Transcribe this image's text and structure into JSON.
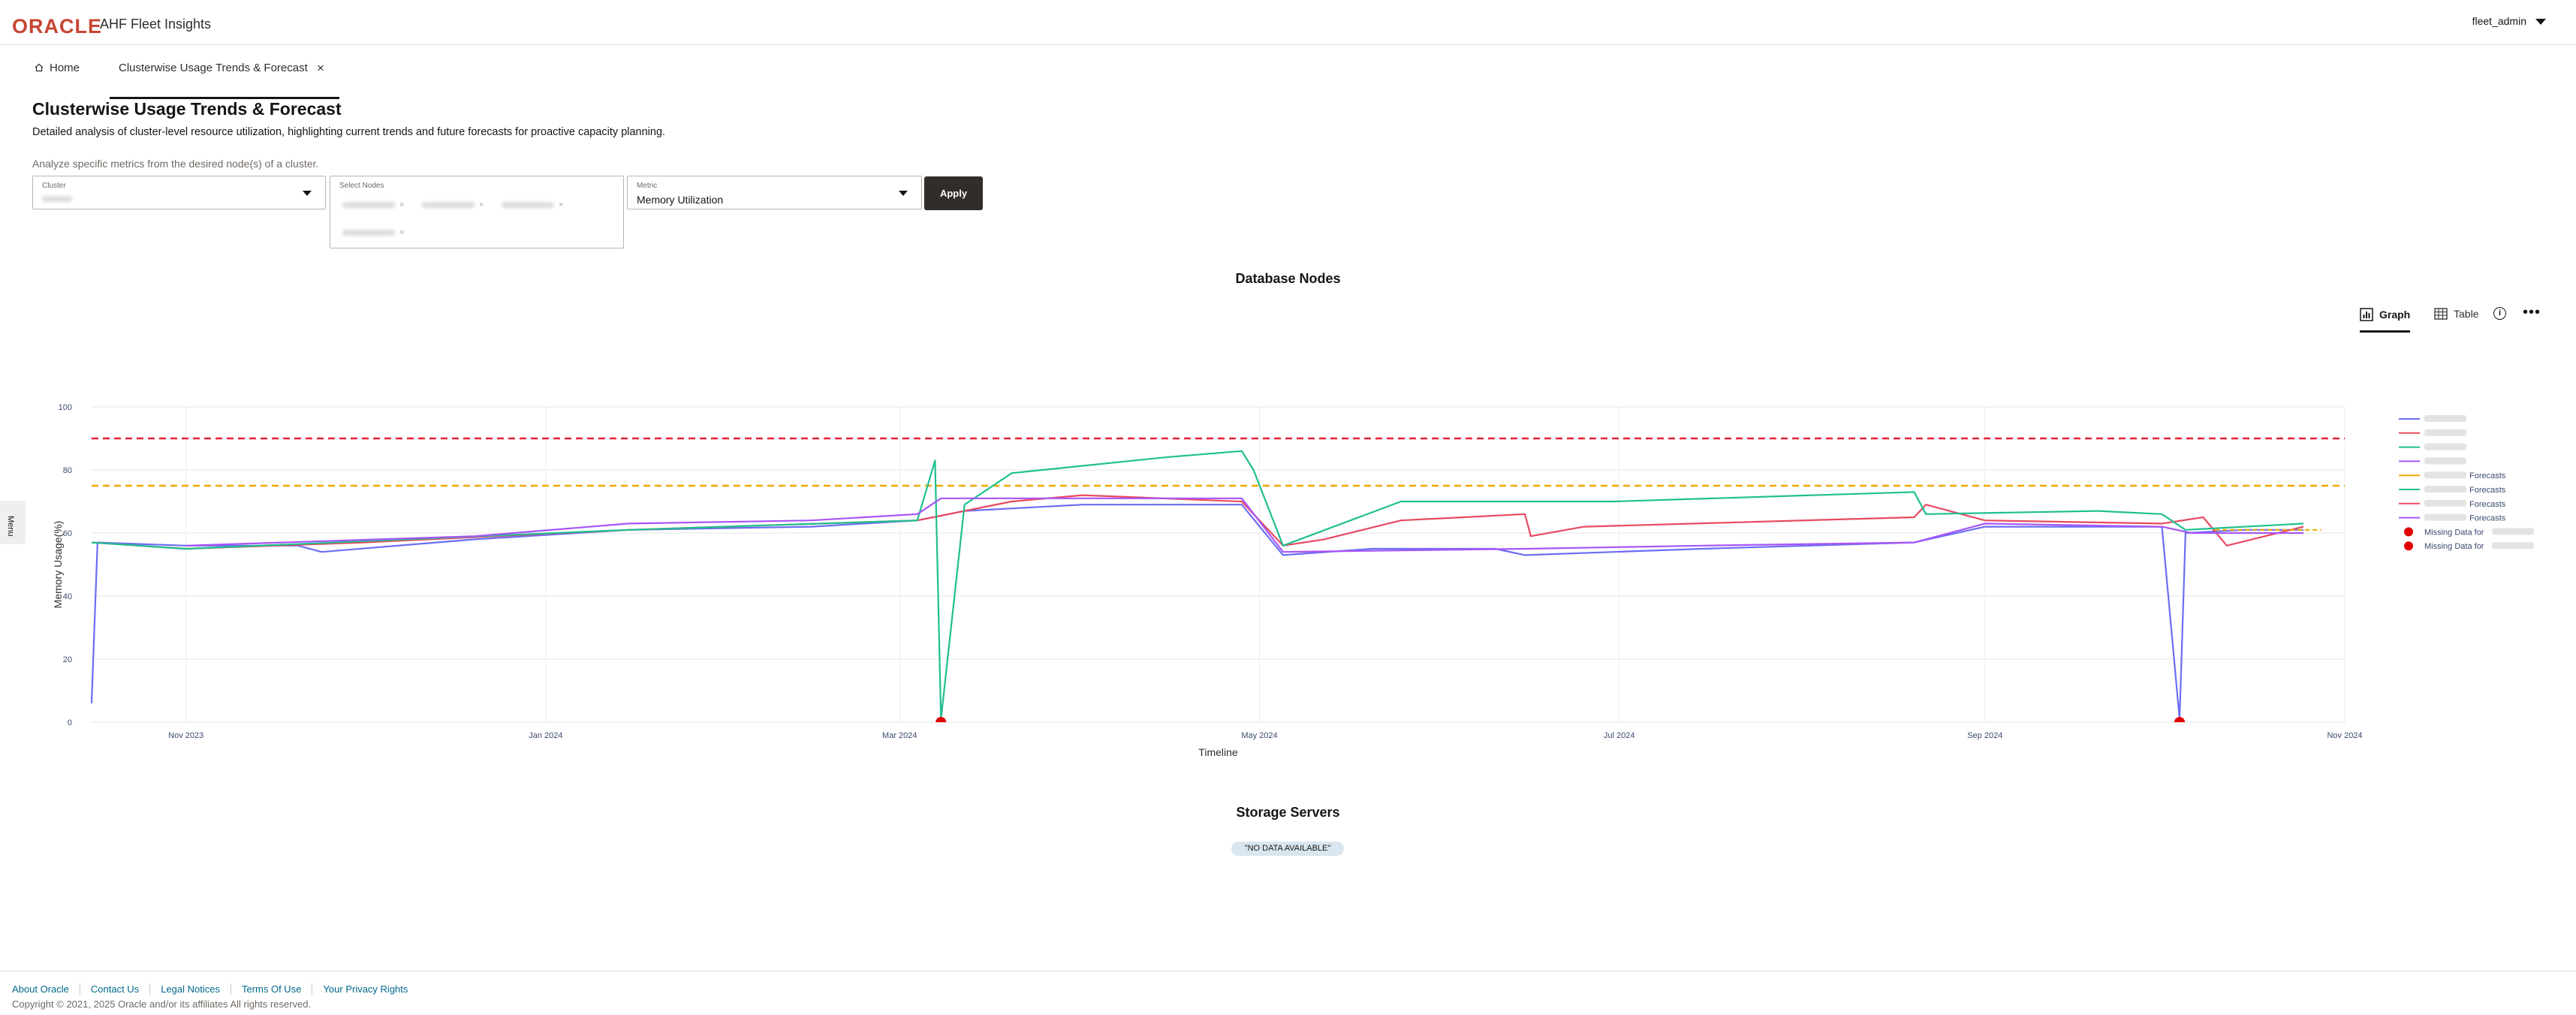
{
  "header": {
    "logo": "ORACLE",
    "app_title": "AHF Fleet Insights",
    "user": "fleet_admin"
  },
  "tabs": {
    "home": "Home",
    "active": "Clusterwise Usage Trends & Forecast",
    "close": "×"
  },
  "page": {
    "title": "Clusterwise Usage Trends & Forecast",
    "description": "Detailed analysis of cluster-level resource utilization, highlighting current trends and future forecasts for proactive capacity planning.",
    "hint": "Analyze specific metrics from the desired node(s) of a cluster."
  },
  "filters": {
    "cluster_label": "Cluster",
    "nodes_label": "Select Nodes",
    "metric_label": "Metric",
    "metric_value": "Memory Utilization",
    "apply": "Apply"
  },
  "side_menu": {
    "label": "Menu"
  },
  "sections": {
    "database_nodes": "Database Nodes",
    "storage_servers": "Storage Servers"
  },
  "view": {
    "graph": "Graph",
    "table": "Table"
  },
  "storage": {
    "no_data": "\"NO DATA AVAILABLE\""
  },
  "chart_data": {
    "type": "line",
    "xlabel": "Timeline",
    "ylabel": "Memory Usage(%)",
    "ylim": [
      0,
      100
    ],
    "xlim": [
      "2023-10-16",
      "2024-11-01"
    ],
    "y_ticks": [
      0,
      20,
      40,
      60,
      80,
      100
    ],
    "x_ticks": [
      {
        "date": "2023-11-01",
        "label": "Nov 2023"
      },
      {
        "date": "2024-01-01",
        "label": "Jan 2024"
      },
      {
        "date": "2024-03-01",
        "label": "Mar 2024"
      },
      {
        "date": "2024-05-01",
        "label": "May 2024"
      },
      {
        "date": "2024-07-01",
        "label": "Jul 2024"
      },
      {
        "date": "2024-09-01",
        "label": "Sep 2024"
      },
      {
        "date": "2024-11-01",
        "label": "Nov 2024"
      }
    ],
    "thresholds": [
      {
        "value": 90,
        "color": "#e8203a"
      },
      {
        "value": 75,
        "color": "#f0a800"
      }
    ],
    "series": [
      {
        "color": "#6b6ef5",
        "points": [
          [
            "2023-10-16",
            6
          ],
          [
            "2023-10-17",
            57
          ],
          [
            "2023-11-01",
            56
          ],
          [
            "2023-11-20",
            56
          ],
          [
            "2023-11-24",
            54
          ],
          [
            "2023-12-20",
            58
          ],
          [
            "2024-01-15",
            61
          ],
          [
            "2024-02-15",
            62
          ],
          [
            "2024-03-04",
            64
          ],
          [
            "2024-03-12",
            67
          ],
          [
            "2024-04-01",
            69
          ],
          [
            "2024-04-28",
            69
          ],
          [
            "2024-05-05",
            53
          ],
          [
            "2024-05-20",
            55
          ],
          [
            "2024-06-10",
            55
          ],
          [
            "2024-06-15",
            53
          ],
          [
            "2024-07-15",
            55
          ],
          [
            "2024-08-20",
            57
          ],
          [
            "2024-09-01",
            62
          ],
          [
            "2024-10-01",
            62
          ],
          [
            "2024-10-04",
            1
          ],
          [
            "2024-10-05",
            60
          ],
          [
            "2024-10-15",
            61
          ],
          [
            "2024-10-25",
            61
          ]
        ]
      },
      {
        "color": "#e84a5f",
        "points": [
          [
            "2023-10-16",
            57
          ],
          [
            "2023-11-01",
            55
          ],
          [
            "2023-12-01",
            57
          ],
          [
            "2024-01-15",
            61
          ],
          [
            "2024-03-04",
            64
          ],
          [
            "2024-03-20",
            70
          ],
          [
            "2024-04-01",
            72
          ],
          [
            "2024-04-28",
            70
          ],
          [
            "2024-05-05",
            56
          ],
          [
            "2024-05-12",
            58
          ],
          [
            "2024-05-25",
            64
          ],
          [
            "2024-06-15",
            66
          ],
          [
            "2024-06-16",
            59
          ],
          [
            "2024-06-25",
            62
          ],
          [
            "2024-08-20",
            65
          ],
          [
            "2024-08-22",
            69
          ],
          [
            "2024-09-01",
            64
          ],
          [
            "2024-10-01",
            63
          ],
          [
            "2024-10-08",
            65
          ],
          [
            "2024-10-12",
            56
          ],
          [
            "2024-10-25",
            62
          ]
        ]
      },
      {
        "color": "#1fbf8f",
        "points": [
          [
            "2023-10-16",
            57
          ],
          [
            "2023-11-01",
            55
          ],
          [
            "2024-01-15",
            61
          ],
          [
            "2024-03-04",
            64
          ],
          [
            "2024-03-07",
            83
          ],
          [
            "2024-03-08",
            1
          ],
          [
            "2024-03-12",
            69
          ],
          [
            "2024-03-20",
            79
          ],
          [
            "2024-04-15",
            84
          ],
          [
            "2024-04-28",
            86
          ],
          [
            "2024-04-30",
            80
          ],
          [
            "2024-05-05",
            56
          ],
          [
            "2024-05-25",
            70
          ],
          [
            "2024-06-30",
            70
          ],
          [
            "2024-08-20",
            73
          ],
          [
            "2024-08-22",
            66
          ],
          [
            "2024-09-20",
            67
          ],
          [
            "2024-10-01",
            66
          ],
          [
            "2024-10-05",
            61
          ],
          [
            "2024-10-25",
            63
          ]
        ]
      },
      {
        "color": "#a855f7",
        "points": [
          [
            "2023-11-01",
            56
          ],
          [
            "2023-12-20",
            59
          ],
          [
            "2024-01-15",
            63
          ],
          [
            "2024-02-15",
            64
          ],
          [
            "2024-03-04",
            66
          ],
          [
            "2024-03-08",
            71
          ],
          [
            "2024-03-20",
            71
          ],
          [
            "2024-04-28",
            71
          ],
          [
            "2024-05-05",
            54
          ],
          [
            "2024-06-15",
            55
          ],
          [
            "2024-07-15",
            56
          ],
          [
            "2024-08-20",
            57
          ],
          [
            "2024-09-01",
            63
          ],
          [
            "2024-10-01",
            62
          ],
          [
            "2024-10-06",
            60
          ],
          [
            "2024-10-25",
            60
          ]
        ]
      },
      {
        "color": "#f0a800",
        "dash": true,
        "points": [
          [
            "2024-10-10",
            61
          ],
          [
            "2024-10-28",
            61
          ]
        ]
      }
    ],
    "missing_markers": [
      "2024-03-08",
      "2024-10-04"
    ],
    "legend": [
      {
        "color": "#6b6ef5",
        "label": ""
      },
      {
        "color": "#e84a5f",
        "label": ""
      },
      {
        "color": "#1fbf8f",
        "label": ""
      },
      {
        "color": "#a855f7",
        "label": ""
      },
      {
        "color": "#f0a800",
        "label": "Forecasts"
      },
      {
        "color": "#1fbf8f",
        "label": "Forecasts"
      },
      {
        "color": "#e84a5f",
        "label": "Forecasts"
      },
      {
        "color": "#a855f7",
        "label": "Forecasts"
      },
      {
        "color": "#e00000",
        "label": "Missing Data for",
        "marker": true
      },
      {
        "color": "#e00000",
        "label": "Missing Data for",
        "marker": true
      }
    ]
  },
  "footer": {
    "links": [
      "About Oracle",
      "Contact Us",
      "Legal Notices",
      "Terms Of Use",
      "Your Privacy Rights"
    ],
    "copyright": "Copyright © 2021, 2025 Oracle and/or its affiliates All rights reserved."
  }
}
